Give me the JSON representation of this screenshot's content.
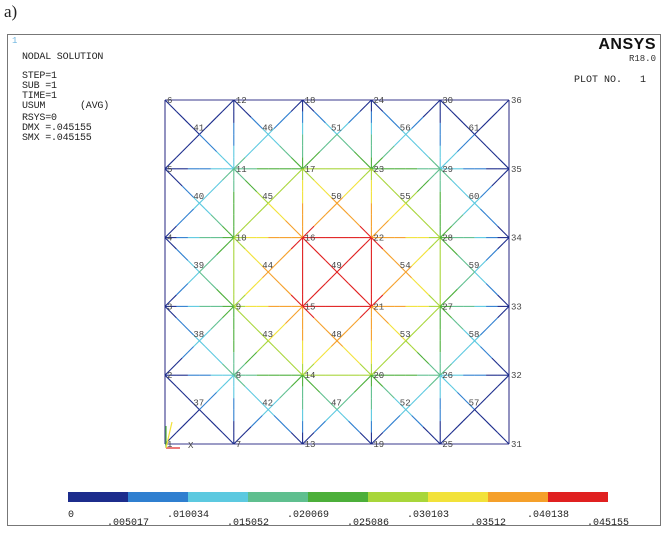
{
  "figure_label": "a)",
  "window_number": "1",
  "header": {
    "title": "NODAL SOLUTION",
    "step": "STEP=1",
    "sub": "SUB =1",
    "time": "TIME=1",
    "usum": "USUM      (AVG)",
    "rsys": "RSYS=0",
    "dmx": "DMX =.045155",
    "smx": "SMX =.045155"
  },
  "brand": "ANSYS",
  "version": "R18.0",
  "plot_no": "PLOT NO.   1",
  "axis_triad_label": "X",
  "chart_data": {
    "type": "contour-mesh",
    "corner_nodes": [
      [
        "6",
        "12",
        "18",
        "24",
        "30",
        "36"
      ],
      [
        "5",
        "11",
        "17",
        "23",
        "29",
        "35"
      ],
      [
        "4",
        "10",
        "16",
        "22",
        "28",
        "34"
      ],
      [
        "3",
        "9",
        "15",
        "21",
        "27",
        "33"
      ],
      [
        "2",
        "8",
        "14",
        "20",
        "26",
        "32"
      ],
      [
        "1",
        "7",
        "13",
        "19",
        "25",
        "31"
      ]
    ],
    "center_nodes": [
      [
        "41",
        "46",
        "51",
        "56",
        "61"
      ],
      [
        "40",
        "45",
        "50",
        "55",
        "60"
      ],
      [
        "39",
        "44",
        "49",
        "54",
        "59"
      ],
      [
        "38",
        "43",
        "48",
        "53",
        "58"
      ],
      [
        "37",
        "42",
        "47",
        "52",
        "57"
      ]
    ],
    "legend_levels": [
      "0",
      ".005017",
      ".010034",
      ".015052",
      ".020069",
      ".025086",
      ".030103",
      ".03512",
      ".040138",
      ".045155"
    ],
    "legend_colors": [
      "#1c2c8c",
      "#2f7fd0",
      "#5cc9e0",
      "#5fbf8f",
      "#4caf3a",
      "#a8d63a",
      "#f2e23a",
      "#f5a02a",
      "#e02020"
    ],
    "dmx": 0.045155
  }
}
